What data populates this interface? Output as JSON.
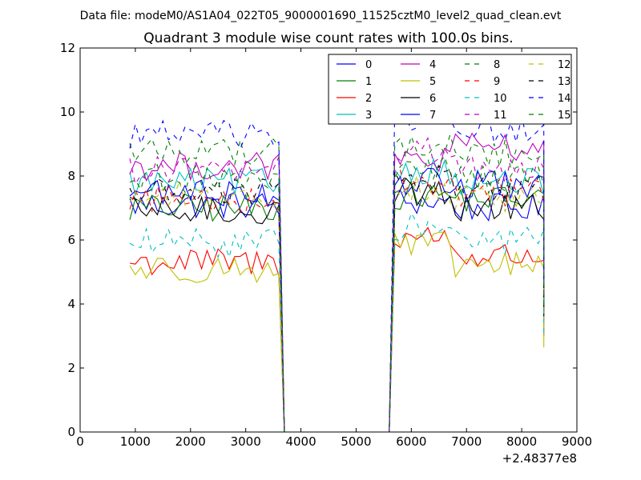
{
  "chart_data": {
    "type": "line",
    "suptitle": "Data file: modeM0/AS1A04_022T05_9000001690_11525cztM0_level2_quad_clean.evt",
    "title": "Quadrant 3 module wise count rates with 100.0s bins.",
    "xlabel": "",
    "ylabel": "",
    "x_offset_label": "+2.48377e8",
    "xlim": [
      0,
      9000
    ],
    "ylim": [
      0,
      12
    ],
    "xticks": [
      0,
      1000,
      2000,
      3000,
      4000,
      5000,
      6000,
      7000,
      8000,
      9000
    ],
    "yticks": [
      0,
      2,
      4,
      6,
      8,
      10,
      12
    ],
    "grid": false,
    "legend_position": "top-right",
    "x_segments": [
      {
        "start": 900,
        "step": 100,
        "count": 28
      },
      {
        "start": 3700,
        "step": 100,
        "count": 20
      },
      {
        "start": 5700,
        "step": 100,
        "count": 11
      },
      {
        "start": 6800,
        "step": 100,
        "count": 17
      }
    ],
    "series": [
      {
        "name": "0",
        "color": "#0000ff",
        "dash": false,
        "levels": [
          7.1,
          0,
          7.2,
          7.0,
          0,
          7.2
        ]
      },
      {
        "name": "1",
        "color": "#008000",
        "dash": false,
        "levels": [
          7.0,
          0,
          7.4,
          7.3,
          0,
          7.1
        ]
      },
      {
        "name": "2",
        "color": "#ff0000",
        "dash": false,
        "levels": [
          5.3,
          0,
          6.1,
          5.5,
          0,
          5.6
        ]
      },
      {
        "name": "3",
        "color": "#00bfbf",
        "dash": false,
        "levels": [
          7.8,
          0,
          8.2,
          7.8,
          0,
          7.8
        ]
      },
      {
        "name": "4",
        "color": "#bf00bf",
        "dash": false,
        "levels": [
          8.3,
          0,
          8.5,
          8.9,
          0,
          8.4
        ]
      },
      {
        "name": "5",
        "color": "#bfbf00",
        "dash": false,
        "levels": [
          5.1,
          0,
          5.8,
          5.2,
          0,
          5.1
        ]
      },
      {
        "name": "6",
        "color": "#000000",
        "dash": false,
        "levels": [
          6.9,
          0,
          7.5,
          7.0,
          0,
          6.9
        ]
      },
      {
        "name": "7",
        "color": "#0000ff",
        "dash": false,
        "levels": [
          7.5,
          0,
          7.8,
          7.7,
          0,
          7.6
        ]
      },
      {
        "name": "8",
        "color": "#008000",
        "dash": true,
        "levels": [
          8.8,
          0,
          8.9,
          8.7,
          0,
          8.7
        ]
      },
      {
        "name": "9",
        "color": "#ff0000",
        "dash": true,
        "levels": [
          7.3,
          0,
          7.8,
          7.5,
          0,
          7.4
        ]
      },
      {
        "name": "10",
        "color": "#00bfbf",
        "dash": true,
        "levels": [
          5.9,
          0,
          6.4,
          6.0,
          0,
          5.9
        ]
      },
      {
        "name": "11",
        "color": "#bf00bf",
        "dash": true,
        "levels": [
          8.2,
          0,
          8.8,
          8.2,
          0,
          8.1
        ]
      },
      {
        "name": "12",
        "color": "#bfbf00",
        "dash": true,
        "levels": [
          7.4,
          0,
          7.6,
          7.3,
          0,
          7.3
        ]
      },
      {
        "name": "13",
        "color": "#000000",
        "dash": true,
        "levels": [
          7.5,
          0,
          7.9,
          7.6,
          0,
          7.5
        ]
      },
      {
        "name": "14",
        "color": "#0000ff",
        "dash": true,
        "levels": [
          9.3,
          0,
          9.7,
          9.5,
          0,
          9.2
        ]
      },
      {
        "name": "15",
        "color": "#008000",
        "dash": true,
        "levels": [
          7.9,
          0,
          8.2,
          7.9,
          0,
          7.9
        ]
      }
    ]
  }
}
